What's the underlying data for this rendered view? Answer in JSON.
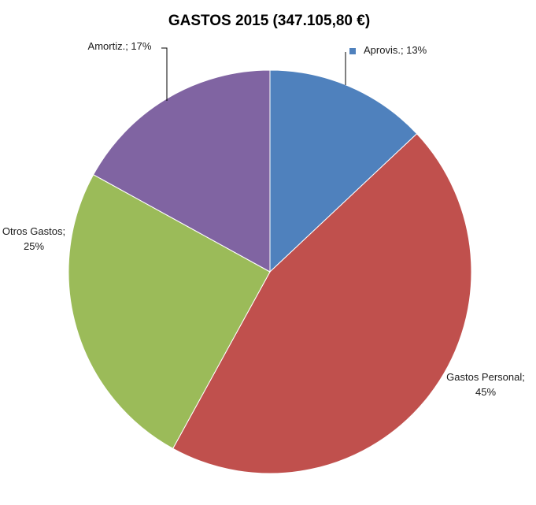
{
  "chart_data": {
    "type": "pie",
    "title": "GASTOS 2015 (347.105,80 €)",
    "slices": [
      {
        "category": "Aprovis.",
        "value": 13,
        "label": "Aprovis.; 13%",
        "label_lines": [
          "Aprovis.; 13%"
        ],
        "color": "#4F81BD"
      },
      {
        "category": "Gastos Personal",
        "value": 45,
        "label": "Gastos Personal; 45%",
        "label_lines": [
          "Gastos Personal;",
          "45%"
        ],
        "color": "#C0504D"
      },
      {
        "category": "Otros Gastos",
        "value": 25,
        "label": "Otros Gastos; 25%",
        "label_lines": [
          "Otros Gastos;",
          "25%"
        ],
        "color": "#9BBB59"
      },
      {
        "category": "Amortiz.",
        "value": 17,
        "label": "Amortiz.; 17%",
        "label_lines": [
          "Amortiz.; 17%"
        ],
        "color": "#8064A2"
      }
    ],
    "start_angle_deg": 0,
    "direction": "clockwise",
    "legend": "none"
  }
}
